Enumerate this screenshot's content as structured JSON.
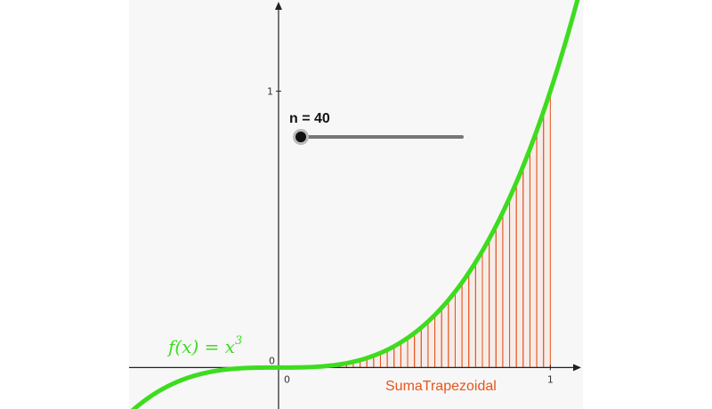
{
  "slider": {
    "label": "n = 40",
    "name": "n",
    "value": 40,
    "min": 1,
    "max": 100,
    "relative_level": 0.0
  },
  "function_label": {
    "text": "f(x)  =  x",
    "exponent": "3"
  },
  "sum_label": "SumaTrapezoidal",
  "colors": {
    "curve": "#3ddc1f",
    "trapezoids": "#e8541b",
    "axes": "#222222",
    "slider_track": "#777777",
    "slider_knob": "#111111"
  },
  "chart_data": {
    "type": "area",
    "function": "x^3",
    "sum": {
      "name": "SumaTrapezoidal",
      "a": 0,
      "b": 1,
      "n": 40
    },
    "x_ticks": [
      "0",
      "1"
    ],
    "y_ticks": [
      "0",
      "1"
    ],
    "xlim": [
      -0.55,
      1.12
    ],
    "ylim": [
      -0.15,
      1.33
    ],
    "grid": false
  }
}
